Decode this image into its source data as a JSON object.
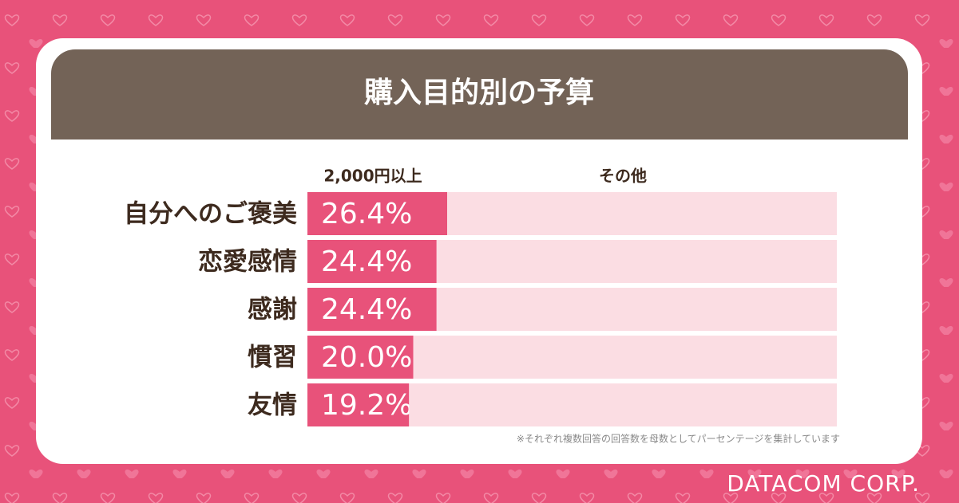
{
  "chart_data": {
    "type": "stacked_barh",
    "title": "購入目的別の予算",
    "categories": [
      "自分へのご褒美",
      "恋愛感情",
      "感謝",
      "慣習",
      "友情"
    ],
    "series": [
      {
        "name": "2,000円以上",
        "color": "#e8527a",
        "values": [
          26.4,
          24.4,
          24.4,
          20.0,
          19.2
        ],
        "value_labels": [
          "26.4%",
          "24.4%",
          "24.4%",
          "20.0%",
          "19.2%"
        ]
      },
      {
        "name": "その他",
        "color": "#fbdde3",
        "values": [
          73.6,
          75.6,
          75.6,
          80.0,
          80.8
        ]
      }
    ],
    "xlim": [
      0,
      100
    ],
    "note": "※それぞれ複数回答の回答数を母数としてパーセンテージを集計しています",
    "brand": "DATACOM CORP."
  }
}
